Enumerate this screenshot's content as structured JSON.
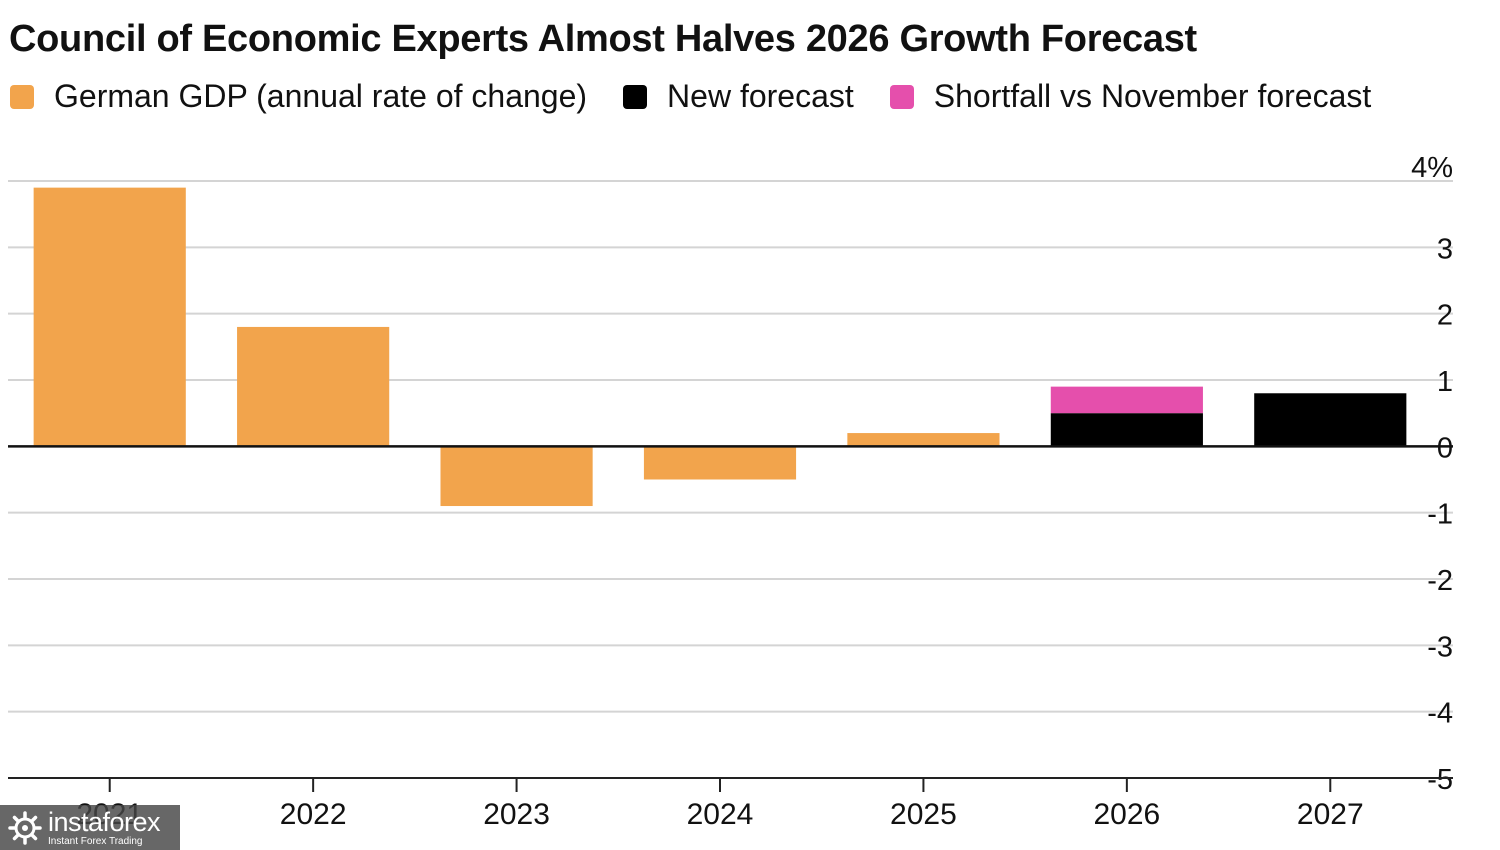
{
  "chart_data": {
    "type": "bar",
    "title": "Council of Economic Experts Almost Halves 2026 Growth Forecast",
    "categories": [
      "2021",
      "2022",
      "2023",
      "2024",
      "2025",
      "2026",
      "2027"
    ],
    "series": [
      {
        "name": "German GDP (annual rate of change)",
        "color": "#f2a44c",
        "values": [
          3.9,
          1.8,
          -0.9,
          -0.5,
          0.2,
          null,
          null
        ]
      },
      {
        "name": "New forecast",
        "color": "#000000",
        "values": [
          null,
          null,
          null,
          null,
          null,
          0.5,
          0.8
        ]
      },
      {
        "name": "Shortfall vs November forecast",
        "color": "#e54fac",
        "values": [
          null,
          null,
          null,
          null,
          null,
          0.4,
          null
        ],
        "stacked_on": "New forecast"
      }
    ],
    "y_ticks": [
      "4%",
      "3",
      "2",
      "1",
      "0",
      "-1",
      "-2",
      "-3",
      "-4",
      "-5"
    ],
    "ylim": [
      -5,
      4
    ],
    "grid": true,
    "y_axis_side": "right",
    "legend_position": "top-left"
  },
  "watermark": {
    "brand": "instaforex",
    "tagline": "Instant Forex Trading"
  }
}
